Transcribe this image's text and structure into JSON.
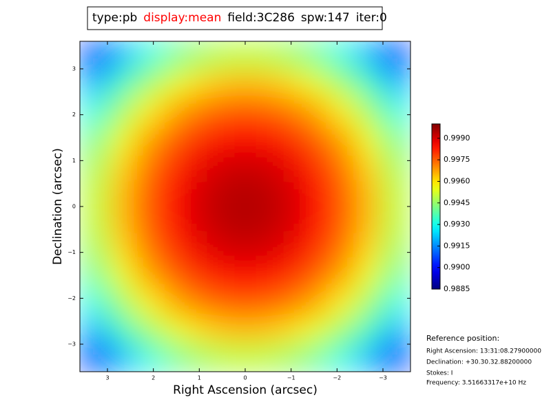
{
  "chart_data": {
    "type": "heatmap",
    "title_parts": [
      {
        "text": "type:pb",
        "color": "#000000"
      },
      {
        "text": "display:mean",
        "color": "#ff0000"
      },
      {
        "text": "field:3C286",
        "color": "#000000"
      },
      {
        "text": "spw:147",
        "color": "#000000"
      },
      {
        "text": "iter:0",
        "color": "#000000"
      }
    ],
    "x_label": "Right Ascension (arcsec)",
    "y_label": "Declination (arcsec)",
    "colormap": "jet",
    "x": [
      3.3,
      2.7,
      2.1,
      1.5,
      0.9,
      0.3,
      -0.3,
      -0.9,
      -1.5,
      -2.1,
      -2.7,
      -3.3
    ],
    "y": [
      3.3,
      2.7,
      2.1,
      1.5,
      0.9,
      0.3,
      -0.3,
      -0.9,
      -1.5,
      -2.1,
      -2.7,
      -3.3
    ],
    "z": [
      [
        0.9904,
        0.9919,
        0.9931,
        0.994,
        0.9946,
        0.9949,
        0.9949,
        0.9946,
        0.994,
        0.9931,
        0.9919,
        0.9904
      ],
      [
        0.9919,
        0.9934,
        0.9946,
        0.9955,
        0.9961,
        0.9964,
        0.9964,
        0.9961,
        0.9955,
        0.9946,
        0.9934,
        0.9919
      ],
      [
        0.9931,
        0.9946,
        0.9958,
        0.9967,
        0.9973,
        0.9976,
        0.9976,
        0.9973,
        0.9967,
        0.9958,
        0.9946,
        0.9931
      ],
      [
        0.994,
        0.9955,
        0.9967,
        0.9976,
        0.9982,
        0.9985,
        0.9985,
        0.9982,
        0.9976,
        0.9967,
        0.9955,
        0.994
      ],
      [
        0.9946,
        0.9961,
        0.9973,
        0.9982,
        0.9988,
        0.9991,
        0.9991,
        0.9988,
        0.9982,
        0.9973,
        0.9961,
        0.9946
      ],
      [
        0.9949,
        0.9964,
        0.9976,
        0.9985,
        0.9991,
        0.9994,
        0.9994,
        0.9991,
        0.9985,
        0.9976,
        0.9964,
        0.9949
      ],
      [
        0.9949,
        0.9964,
        0.9976,
        0.9985,
        0.9991,
        0.9994,
        0.9994,
        0.9991,
        0.9985,
        0.9976,
        0.9964,
        0.9949
      ],
      [
        0.9946,
        0.9961,
        0.9973,
        0.9982,
        0.9988,
        0.9991,
        0.9991,
        0.9988,
        0.9982,
        0.9973,
        0.9961,
        0.9946
      ],
      [
        0.994,
        0.9955,
        0.9967,
        0.9976,
        0.9982,
        0.9985,
        0.9985,
        0.9982,
        0.9976,
        0.9967,
        0.9955,
        0.994
      ],
      [
        0.9931,
        0.9946,
        0.9958,
        0.9967,
        0.9973,
        0.9976,
        0.9976,
        0.9973,
        0.9967,
        0.9958,
        0.9946,
        0.9931
      ],
      [
        0.9919,
        0.9934,
        0.9946,
        0.9955,
        0.9961,
        0.9964,
        0.9964,
        0.9961,
        0.9955,
        0.9946,
        0.9934,
        0.9919
      ],
      [
        0.9904,
        0.9919,
        0.9931,
        0.994,
        0.9946,
        0.9949,
        0.9949,
        0.9946,
        0.994,
        0.9931,
        0.9919,
        0.9904
      ]
    ],
    "xlim": [
      3.6,
      -3.6
    ],
    "ylim": [
      -3.6,
      3.6
    ],
    "xticks": [
      3,
      2,
      1,
      0,
      {
        "value": -1,
        "label": "−1"
      },
      {
        "value": -2,
        "label": "−2"
      },
      {
        "value": -3,
        "label": "−3"
      }
    ],
    "yticks": [
      {
        "value": -3,
        "label": "−3"
      },
      {
        "value": -2,
        "label": "−2"
      },
      {
        "value": -1,
        "label": "−1"
      },
      0,
      1,
      2,
      3
    ],
    "zlim": [
      0.9885,
      1.0
    ],
    "zticks": [
      0.9885,
      {
        "value": 0.99,
        "label": "0.9900"
      },
      0.9915,
      {
        "value": 0.993,
        "label": "0.9930"
      },
      0.9945,
      {
        "value": 0.996,
        "label": "0.9960"
      },
      0.9975,
      {
        "value": 0.999,
        "label": "0.9990"
      }
    ],
    "reference": {
      "heading": "Reference position:",
      "lines": [
        "Right Ascension: 13:31:08.27900000",
        "Declination: +30.30.32.88200000",
        "Stokes: I",
        "Frequency: 3.51663317e+10 Hz"
      ]
    }
  }
}
